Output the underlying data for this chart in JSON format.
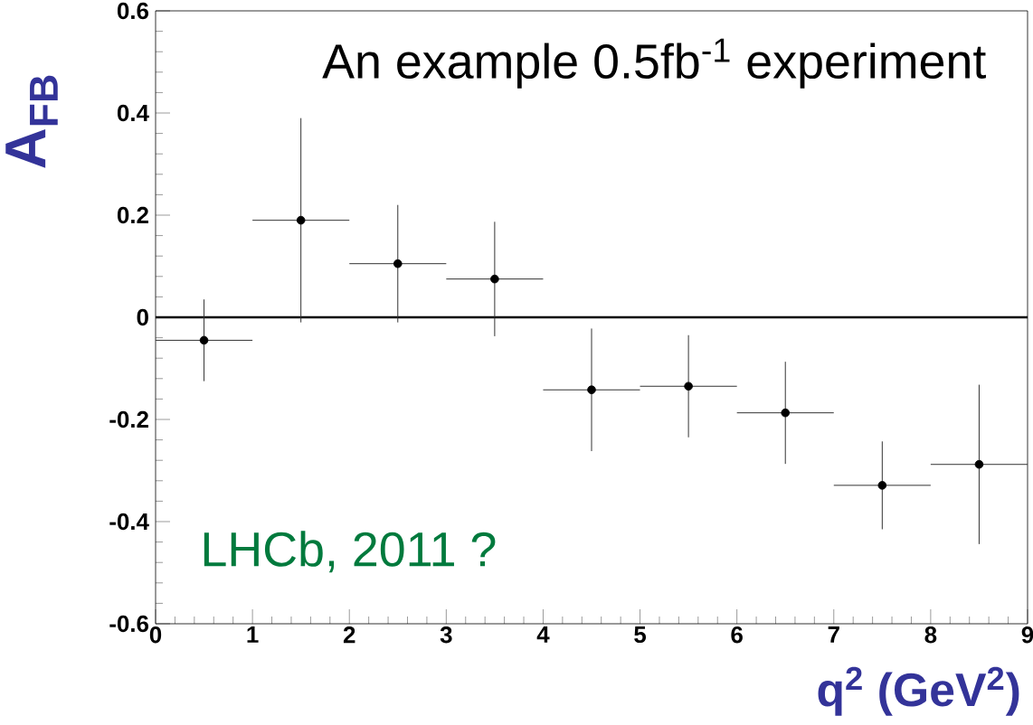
{
  "chart_data": {
    "type": "scatter",
    "title": "An example 0.5fb$^{-1}$ experiment",
    "xlabel": "q$^{2}$ (GeV$^{2}$)",
    "ylabel": "A$_{FB}$",
    "annotations": [
      "LHCb, 2011 ?"
    ],
    "x": [
      0.5,
      1.5,
      2.5,
      3.5,
      4.5,
      5.5,
      6.5,
      7.5,
      8.5
    ],
    "values": [
      -0.045,
      0.19,
      0.105,
      0.075,
      -0.142,
      -0.135,
      -0.187,
      -0.329,
      -0.288
    ],
    "errors": [
      0.08,
      0.2,
      0.115,
      0.112,
      0.12,
      0.1,
      0.1,
      0.086,
      0.156
    ],
    "xerrors": [
      0.5,
      0.5,
      0.5,
      0.5,
      0.5,
      0.5,
      0.5,
      0.5,
      0.5
    ],
    "color": "#000000",
    "xlim": [
      0,
      9
    ],
    "ylim": [
      -0.6,
      0.6
    ],
    "xticks": [
      0,
      1,
      2,
      3,
      4,
      5,
      6,
      7,
      8,
      9
    ],
    "yticks": [
      -0.6,
      -0.4,
      -0.2,
      0,
      0.2,
      0.4,
      0.6
    ],
    "ref_lines": [
      {
        "axis": "y",
        "value": 0,
        "color": "#000000"
      }
    ]
  }
}
